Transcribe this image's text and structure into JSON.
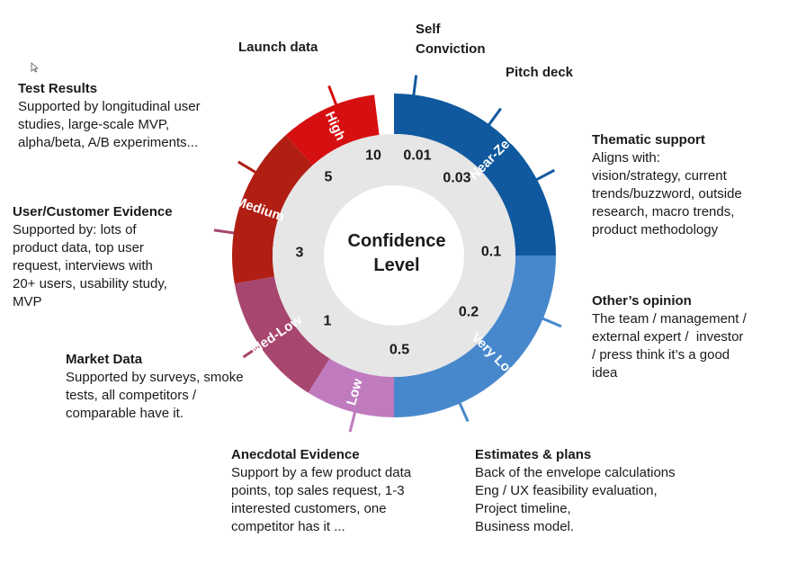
{
  "center": {
    "line1": "Confidence",
    "line2": "Level"
  },
  "segments": [
    {
      "name": "Near-Zero",
      "color": "#10599f"
    },
    {
      "name": "Very Low",
      "color": "#4788cd"
    },
    {
      "name": "Low",
      "color": "#c07bbf"
    },
    {
      "name": "Med-Low",
      "color": "#a7466e"
    },
    {
      "name": "Medium",
      "color": "#b01e14"
    },
    {
      "name": "High",
      "color": "#d60f10"
    }
  ],
  "values": [
    "0.01",
    "0.03",
    "0.1",
    "0.2",
    "0.5",
    "1",
    "3",
    "5",
    "10"
  ],
  "annotations": {
    "self_conviction": {
      "title": "Self\nConviction"
    },
    "pitch_deck": {
      "title": "Pitch deck"
    },
    "launch_data": {
      "title": "Launch data"
    },
    "thematic_support": {
      "title": "Thematic support",
      "body": "Aligns with:\nvision/strategy, current\ntrends/buzzword, outside\nresearch, macro trends,\nproduct methodology"
    },
    "others_opinion": {
      "title": "Other’s opinion",
      "body": "The team / management /\nexternal expert /  investor\n/ press think it’s a good\nidea"
    },
    "estimates_plans": {
      "title": "Estimates & plans",
      "body": "Back of the envelope calculations\nEng / UX feasibility evaluation,\nProject timeline,\nBusiness model."
    },
    "anecdotal_evidence": {
      "title": "Anecdotal Evidence",
      "body": "Support by a few product data\npoints, top sales request, 1-3\ninterested customers, one\ncompetitor has it ..."
    },
    "market_data": {
      "title": "Market Data",
      "body": "Supported by surveys, smoke\ntests, all competitors /\ncomparable have it."
    },
    "user_customer_evidence": {
      "title": "User/Customer Evidence",
      "body": "Supported by: lots of\nproduct data, top user\nrequest, interviews with\n20+ users, usability study,\nMVP"
    },
    "test_results": {
      "title": "Test Results",
      "body": "Supported by longitudinal user\nstudies, large-scale MVP,\nalpha/beta, A/B experiments..."
    }
  }
}
